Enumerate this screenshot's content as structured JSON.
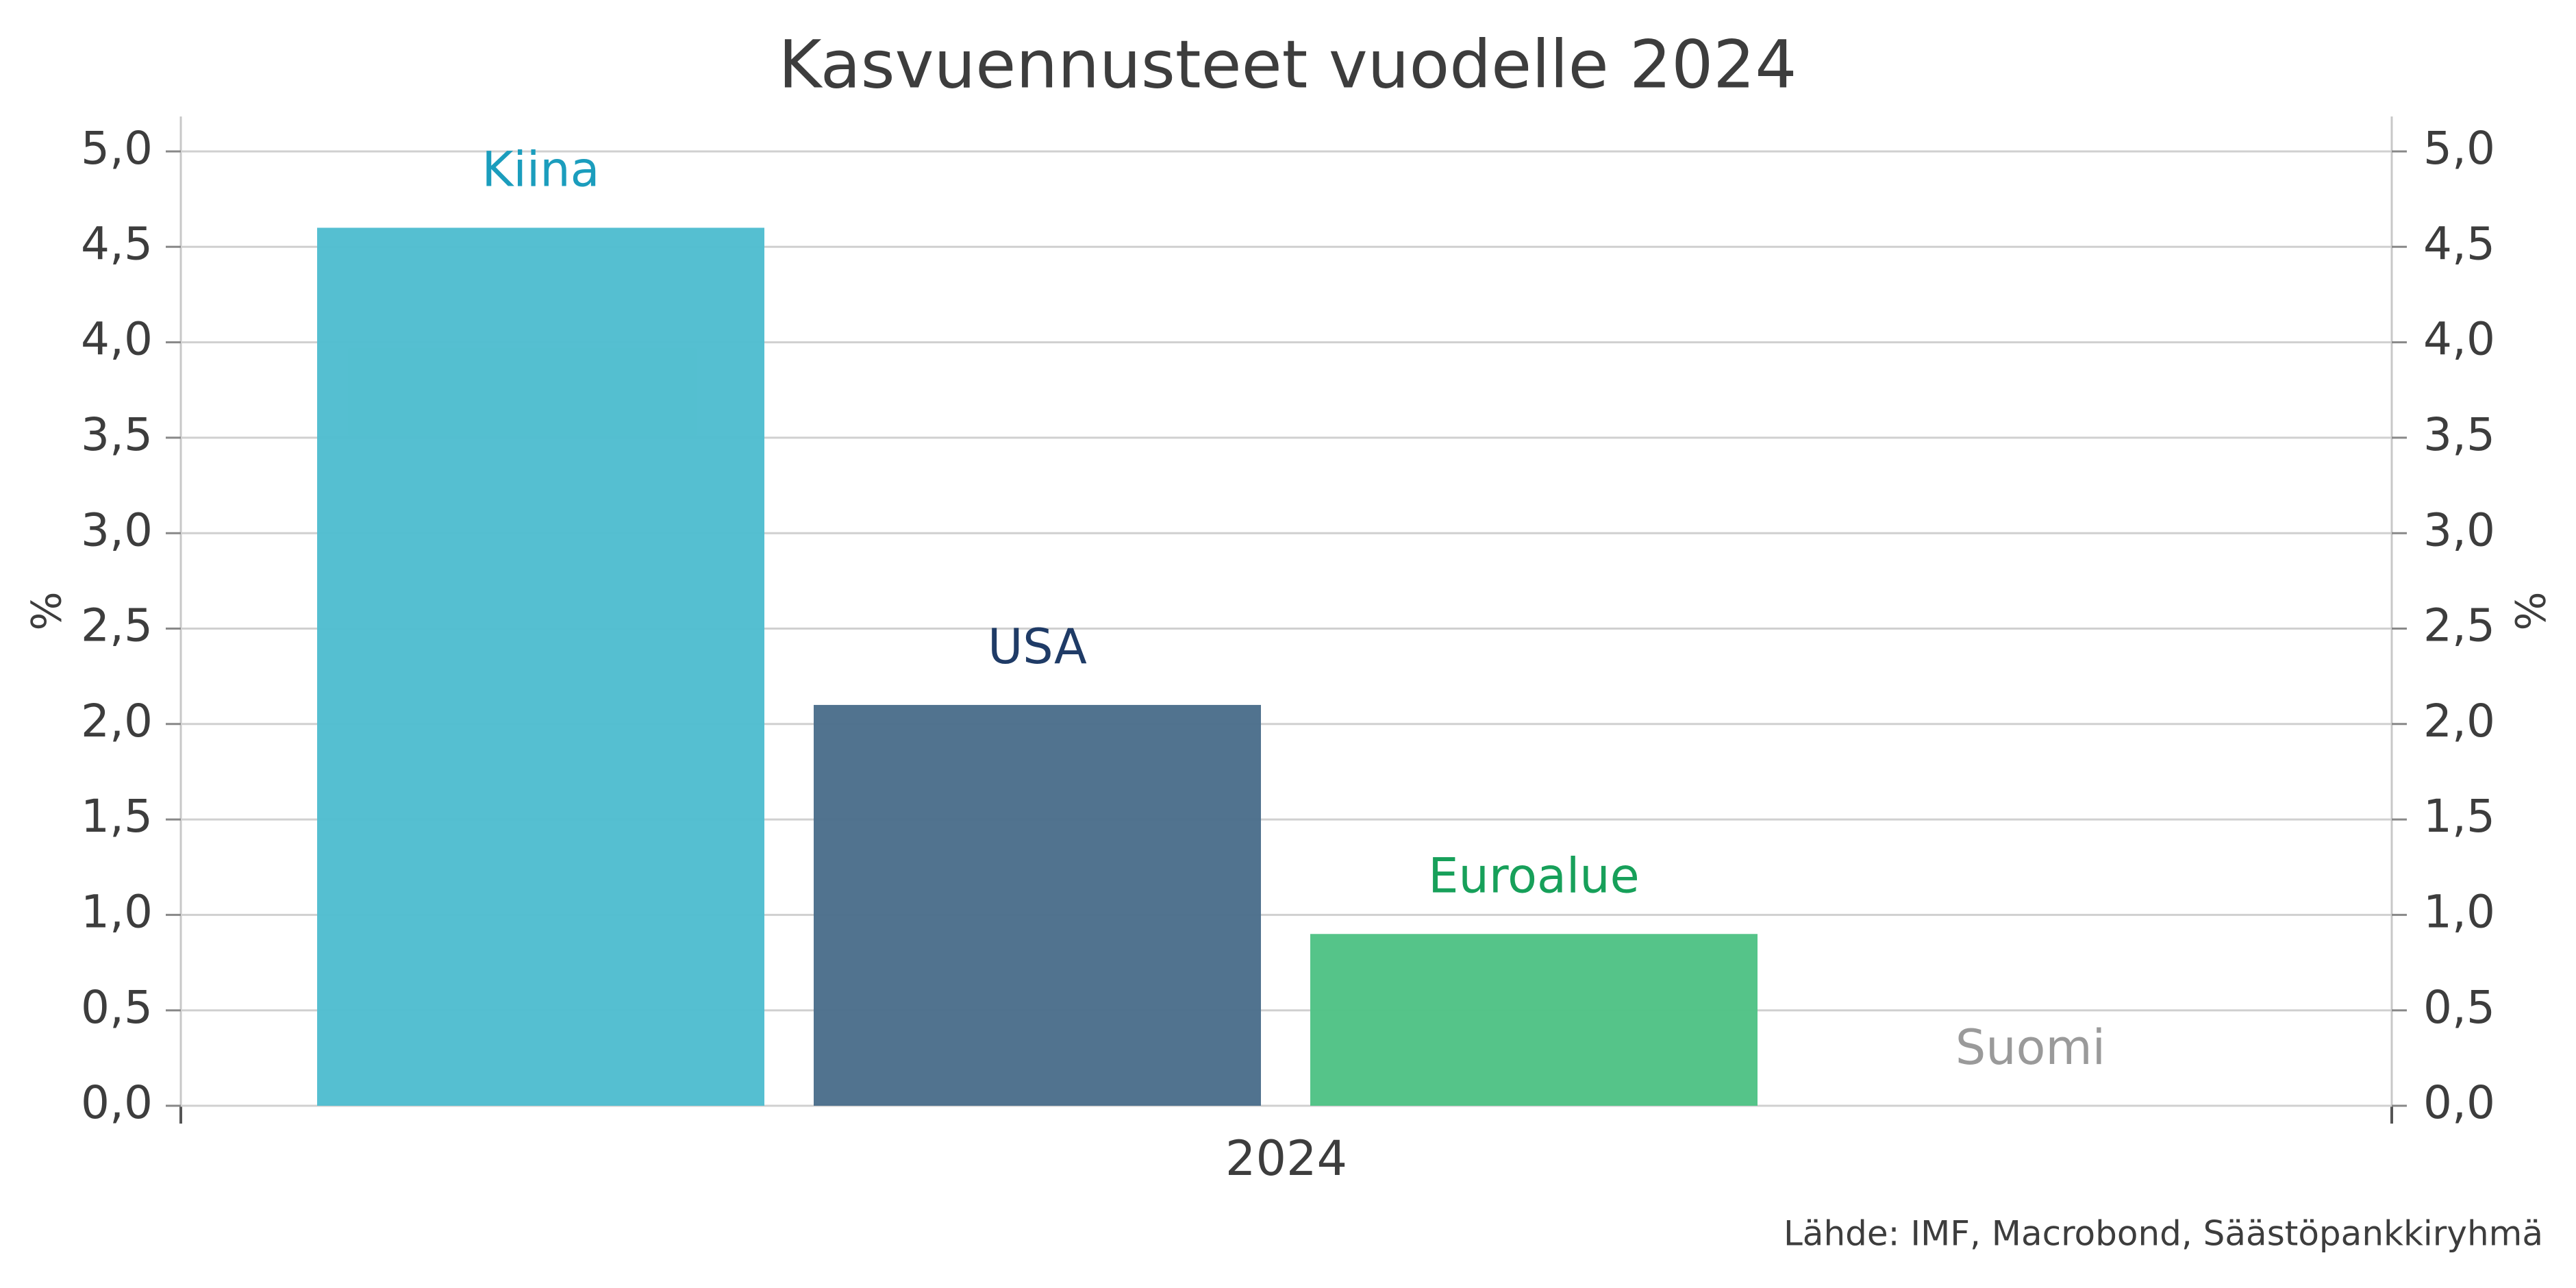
{
  "chart_data": {
    "type": "bar",
    "title": "Kasvuennusteet vuodelle 2024",
    "y_label": "%",
    "y2_label": "%",
    "source": "Lähde: IMF, Macrobond, Säästöpankkiryhmä",
    "categories": [
      "2024"
    ],
    "series": [
      {
        "name": "Kiina",
        "color": "#4fbdcf",
        "label_color": "#1b9dbd",
        "values": [
          4.6
        ]
      },
      {
        "name": "USA",
        "color": "#4b6e8b",
        "label_color": "#1f3b66",
        "values": [
          2.1
        ]
      },
      {
        "name": "Euroalue",
        "color": "#4fc285",
        "label_color": "#17a05a",
        "values": [
          0.9
        ]
      },
      {
        "name": "Suomi",
        "color": "#a0a0a0",
        "label_color": "#9a9a9a",
        "values": [
          0
        ]
      }
    ],
    "ylim": [
      0,
      5
    ],
    "yticks": [
      {
        "value": 0,
        "label": "0,0"
      },
      {
        "value": 0.5,
        "label": "0,5"
      },
      {
        "value": 1,
        "label": "1,0"
      },
      {
        "value": 1.5,
        "label": "1,5"
      },
      {
        "value": 2,
        "label": "2,0"
      },
      {
        "value": 2.5,
        "label": "2,5"
      },
      {
        "value": 3,
        "label": "3,0"
      },
      {
        "value": 3.5,
        "label": "3,5"
      },
      {
        "value": 4,
        "label": "4,0"
      },
      {
        "value": 4.5,
        "label": "4,5"
      },
      {
        "value": 5,
        "label": "5,0"
      }
    ],
    "y2lim": [
      0,
      5
    ],
    "y2ticks": [
      {
        "value": 0,
        "label": "0,0"
      },
      {
        "value": 0.5,
        "label": "0,5"
      },
      {
        "value": 1,
        "label": "1,0"
      },
      {
        "value": 1.5,
        "label": "1,5"
      },
      {
        "value": 2,
        "label": "2,0"
      },
      {
        "value": 2.5,
        "label": "2,5"
      },
      {
        "value": 3,
        "label": "3,0"
      },
      {
        "value": 3.5,
        "label": "3,5"
      },
      {
        "value": 4,
        "label": "4,0"
      },
      {
        "value": 4.5,
        "label": "4,5"
      },
      {
        "value": 5,
        "label": "5,0"
      }
    ],
    "grid": true
  }
}
